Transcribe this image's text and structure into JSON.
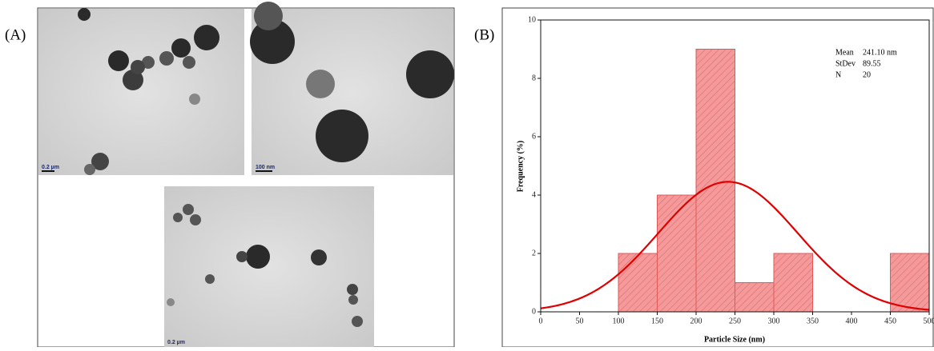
{
  "panels": {
    "a_label": "(A)",
    "b_label": "(B)",
    "scale_bars": [
      "0.2 µm",
      "100 nm",
      "0.2 µm"
    ]
  },
  "chart_data": {
    "type": "histogram",
    "xlabel": "Particle Size (nm)",
    "ylabel": "Frequency (%)",
    "bins": [
      100,
      150,
      200,
      250,
      300,
      350,
      400,
      450,
      500
    ],
    "values": [
      2,
      4,
      9,
      1,
      2,
      0,
      0,
      2
    ],
    "color": "#f28a8a",
    "edge_color": "#e05858",
    "curve_color": "#e00000",
    "xlim": [
      0,
      500
    ],
    "xticks": [
      0,
      50,
      100,
      150,
      200,
      250,
      300,
      350,
      400,
      450,
      500
    ],
    "ylim": [
      0,
      10
    ],
    "yticks": [
      0,
      2,
      4,
      6,
      8,
      10
    ],
    "annotations": [
      {
        "label": "Mean",
        "value": 241.1,
        "value_label": "241.10 nm"
      },
      {
        "label": "StDev",
        "value": 89.55,
        "value_label": "89.55"
      },
      {
        "label": "N",
        "value": 20,
        "value_label": "20"
      }
    ]
  }
}
